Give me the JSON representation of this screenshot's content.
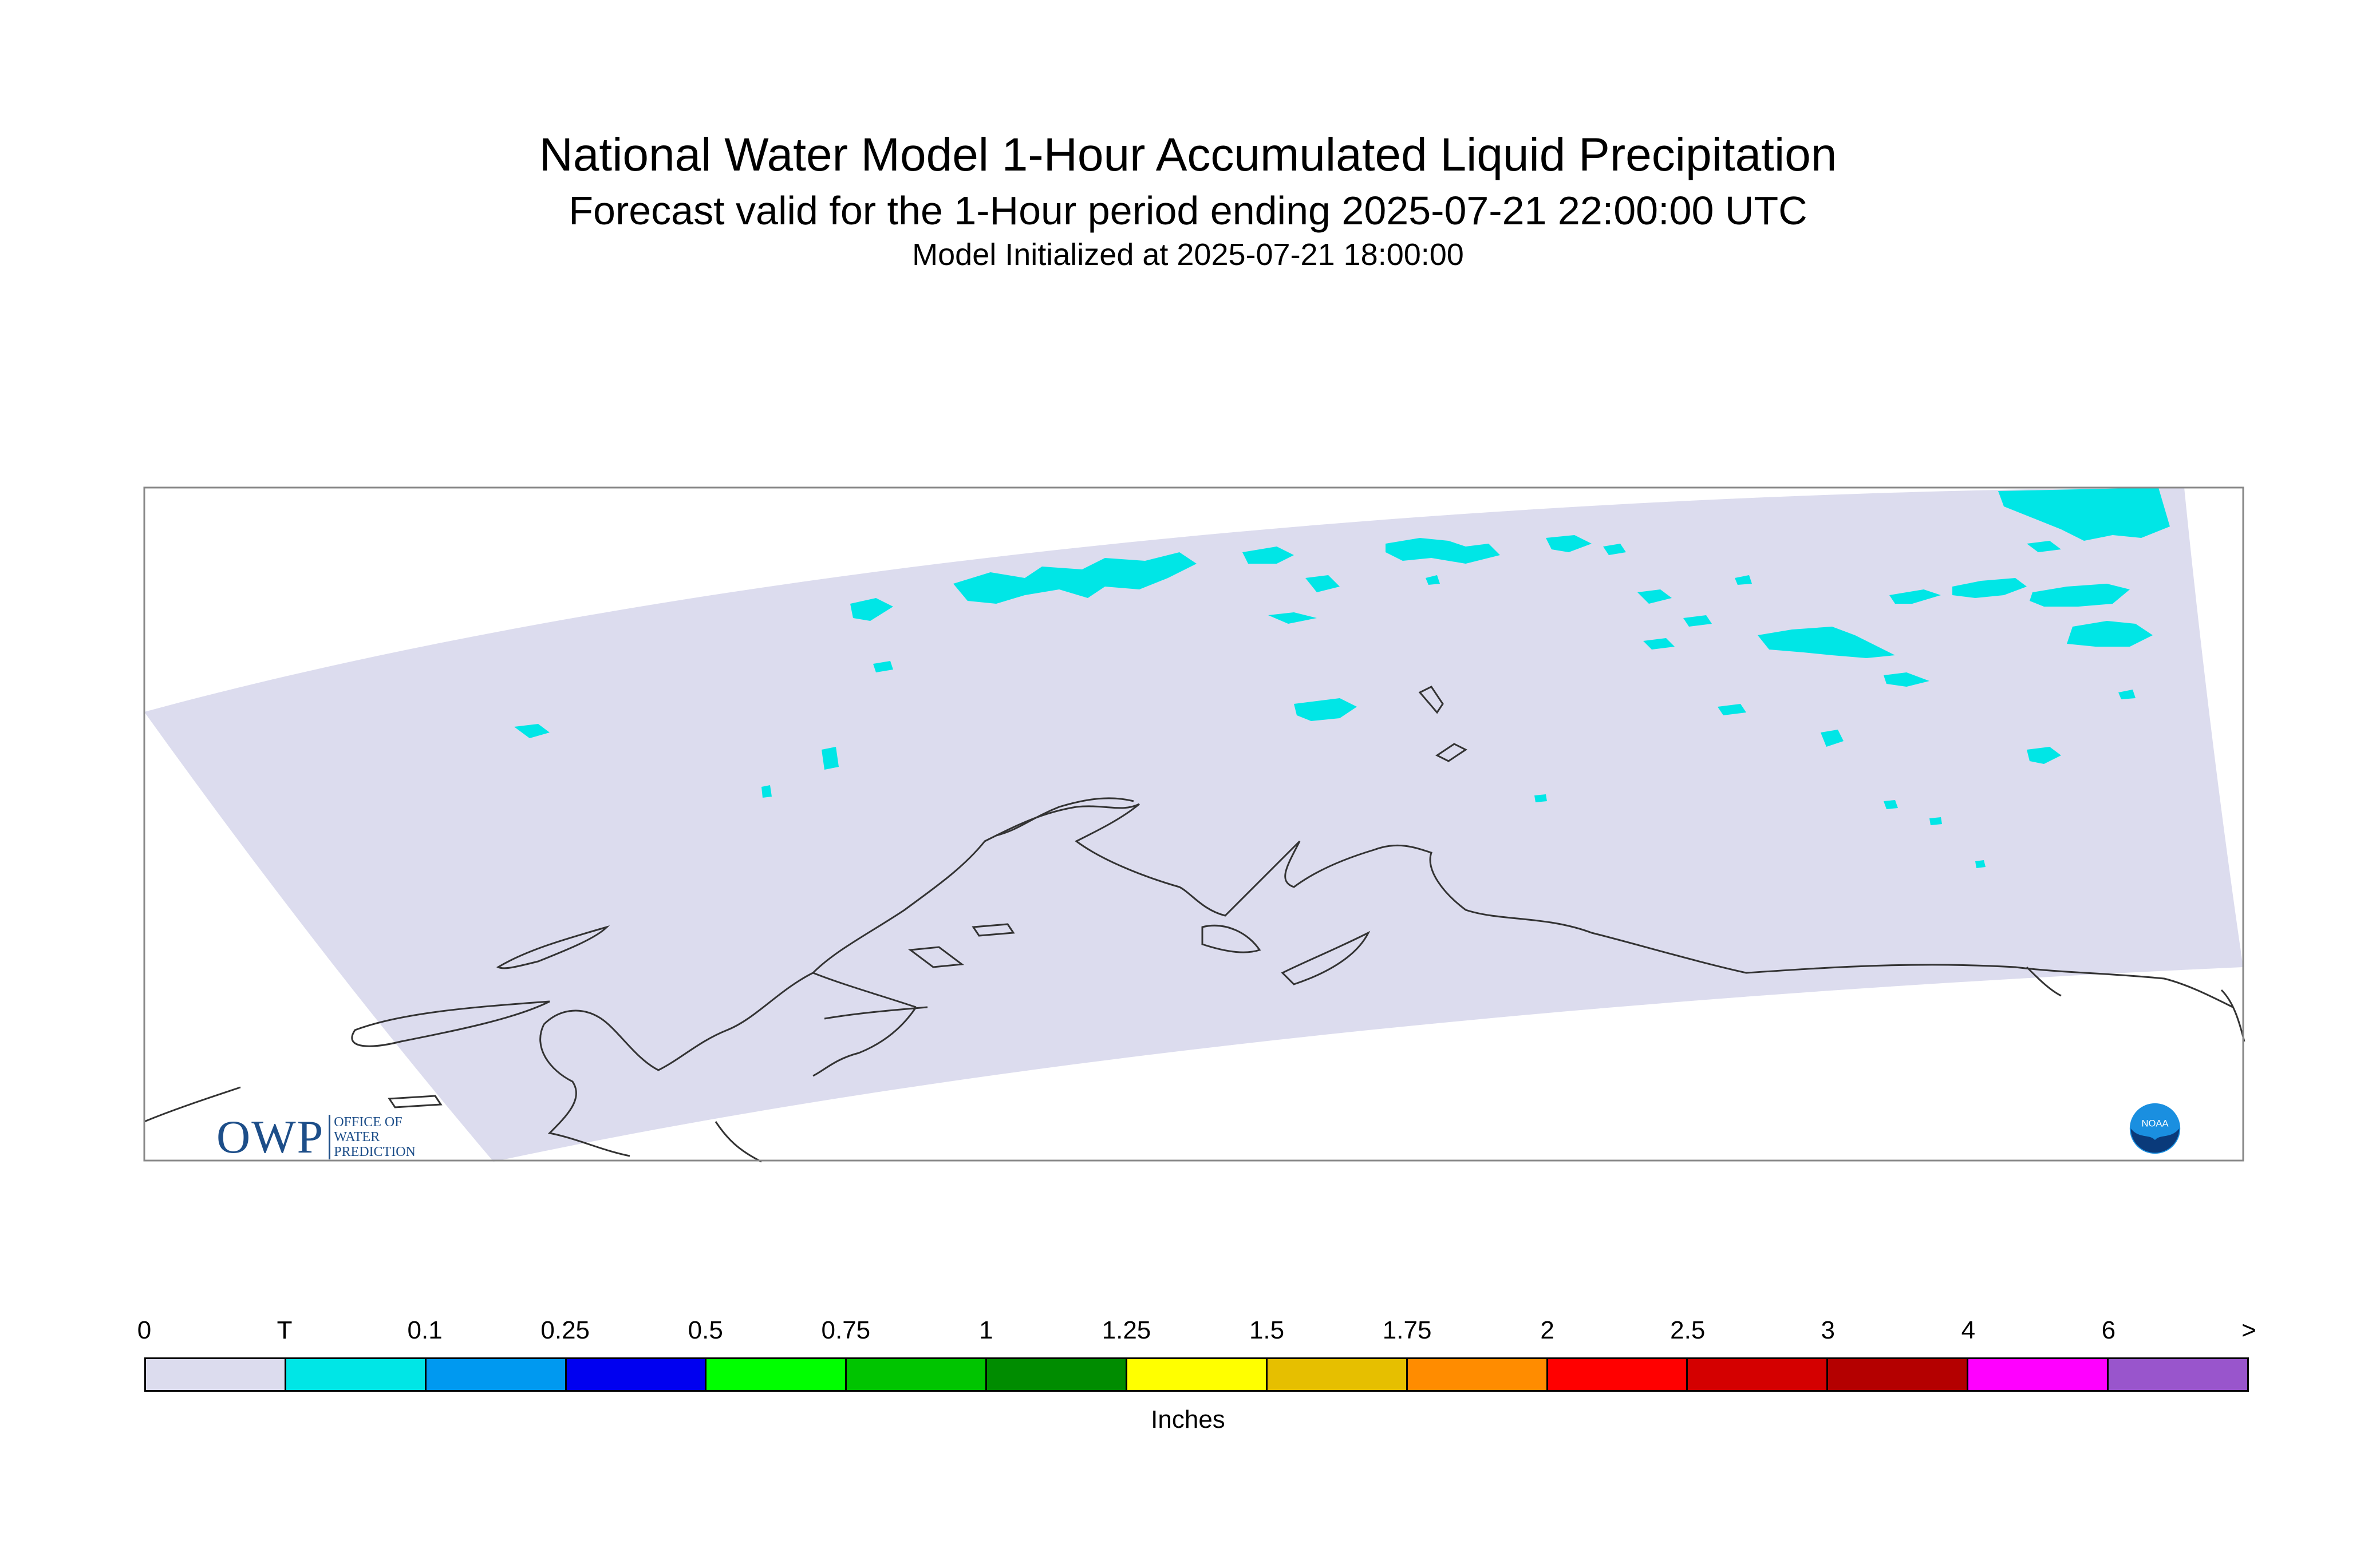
{
  "title": "National Water Model 1-Hour Accumulated Liquid Precipitation",
  "subtitle": "Forecast valid for the 1-Hour period ending 2025-07-21 22:00:00 UTC",
  "init_line": "Model Initialized at 2025-07-21 18:00:00",
  "logos": {
    "owp_text": "OWP",
    "owp_lines": [
      "OFFICE OF",
      "WATER",
      "PREDICTION"
    ],
    "noaa_text": "NOAA"
  },
  "legend": {
    "unit_label": "Inches",
    "ticks": [
      "0",
      "T",
      "0.1",
      "0.25",
      "0.5",
      "0.75",
      "1",
      "1.25",
      "1.5",
      "1.75",
      "2",
      "2.5",
      "3",
      "4",
      "6",
      ">"
    ],
    "colors": [
      "#dcdcee",
      "#00e6e6",
      "#0099f0",
      "#0000f0",
      "#00ff00",
      "#00c400",
      "#008c00",
      "#ffff00",
      "#e6bf00",
      "#ff8c00",
      "#ff0000",
      "#d40000",
      "#b40000",
      "#ff00ff",
      "#9955cc"
    ]
  },
  "map": {
    "domain_fill": "#dcdcee",
    "precip_fill": "#00e6e6",
    "coastline_color": "#333333",
    "frame_color": "#888888"
  }
}
